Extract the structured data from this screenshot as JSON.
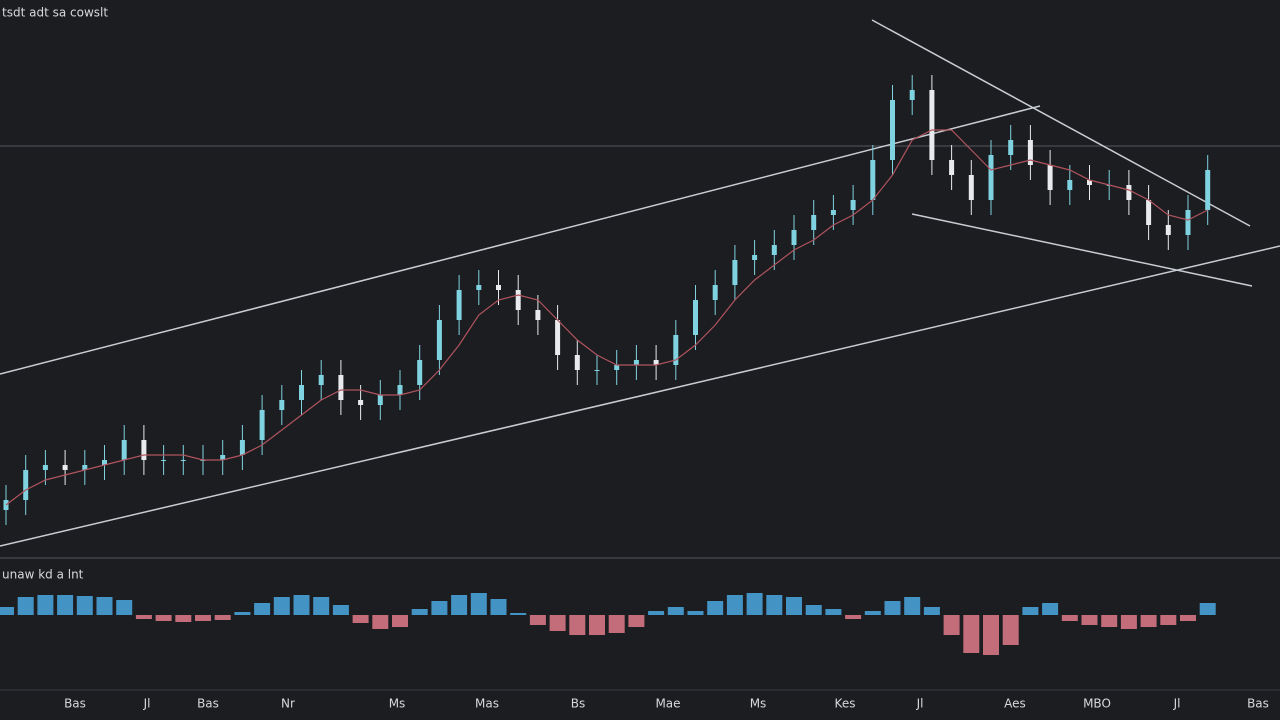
{
  "chart_data": {
    "type": "candlestick",
    "title": "tsdt adt sa cowslt",
    "x_labels": [
      "Bas",
      "Jl",
      "Bas",
      "Nr",
      "Ms",
      "Mas",
      "Bs",
      "Mae",
      "Ms",
      "Kes",
      "Jl",
      "Aes",
      "MBO",
      "Jl",
      "Bas"
    ],
    "open": [
      8,
      10,
      16,
      17,
      16,
      17,
      18,
      22,
      18,
      18,
      18,
      18,
      19,
      22,
      28,
      30,
      33,
      35,
      30,
      29,
      31,
      33,
      38,
      46,
      52,
      53,
      52,
      48,
      46,
      39,
      36,
      36,
      37,
      38,
      37,
      43,
      50,
      53,
      58,
      59,
      61,
      64,
      67,
      68,
      70,
      78,
      90,
      92,
      78,
      75,
      70,
      79,
      82,
      77,
      72,
      74,
      73,
      73,
      70,
      65,
      63,
      68
    ],
    "high": [
      13,
      19,
      20,
      20,
      20,
      21,
      25,
      25,
      21,
      21,
      21,
      22,
      25,
      31,
      33,
      36,
      38,
      38,
      33,
      34,
      36,
      41,
      49,
      55,
      56,
      56,
      55,
      51,
      49,
      42,
      39,
      40,
      41,
      41,
      46,
      53,
      56,
      61,
      62,
      64,
      67,
      70,
      71,
      73,
      81,
      93,
      95,
      95,
      81,
      78,
      82,
      85,
      85,
      80,
      77,
      77,
      76,
      76,
      73,
      68,
      71,
      79
    ],
    "low": [
      5,
      7,
      13,
      13,
      13,
      14,
      15,
      15,
      15,
      15,
      15,
      15,
      16,
      19,
      25,
      27,
      30,
      27,
      26,
      26,
      28,
      30,
      35,
      43,
      49,
      49,
      45,
      43,
      36,
      33,
      33,
      33,
      34,
      34,
      34,
      40,
      47,
      50,
      55,
      56,
      58,
      61,
      64,
      65,
      67,
      75,
      87,
      75,
      72,
      67,
      67,
      76,
      74,
      69,
      69,
      70,
      70,
      67,
      62,
      60,
      60,
      65
    ],
    "close": [
      10,
      16,
      17,
      16,
      17,
      18,
      22,
      18,
      18,
      18,
      18,
      19,
      22,
      28,
      30,
      33,
      35,
      30,
      29,
      31,
      33,
      38,
      46,
      52,
      53,
      52,
      48,
      46,
      39,
      36,
      36,
      37,
      38,
      37,
      43,
      50,
      53,
      58,
      59,
      61,
      64,
      67,
      68,
      70,
      78,
      90,
      92,
      78,
      75,
      70,
      79,
      82,
      77,
      72,
      74,
      73,
      73,
      70,
      65,
      63,
      68,
      76
    ],
    "ylim": [
      0,
      106
    ],
    "up_color": "#7fd3e0",
    "down_color": "#e8eaed",
    "ma": {
      "color": "#b0545e",
      "values": [
        9,
        12,
        14,
        15,
        16,
        17,
        18,
        19,
        19,
        19,
        18,
        18,
        19,
        21,
        24,
        27,
        30,
        32,
        32,
        31,
        31,
        32,
        36,
        41,
        47,
        50,
        51,
        50,
        46,
        42,
        39,
        37,
        37,
        37,
        38,
        41,
        45,
        50,
        54,
        57,
        60,
        62,
        65,
        67,
        70,
        75,
        82,
        84,
        84,
        80,
        76,
        77,
        78,
        77,
        76,
        74,
        73,
        72,
        70,
        67,
        66,
        68
      ]
    },
    "indicator": {
      "type": "bar",
      "label": "unaw kd a lnt",
      "values": [
        8,
        18,
        20,
        20,
        19,
        18,
        15,
        -4,
        -6,
        -7,
        -6,
        -5,
        3,
        12,
        18,
        20,
        18,
        10,
        -8,
        -14,
        -12,
        6,
        14,
        20,
        22,
        16,
        2,
        -10,
        -16,
        -20,
        -20,
        -18,
        -12,
        4,
        8,
        4,
        14,
        20,
        22,
        20,
        18,
        10,
        6,
        -4,
        4,
        14,
        18,
        8,
        -20,
        -38,
        -40,
        -30,
        8,
        12,
        -6,
        -10,
        -12,
        -14,
        -12,
        -10,
        -6,
        12
      ],
      "ylim": [
        -45,
        45
      ],
      "positive_color": "#4aa8e0",
      "negative_color": "#e07a8a"
    }
  }
}
